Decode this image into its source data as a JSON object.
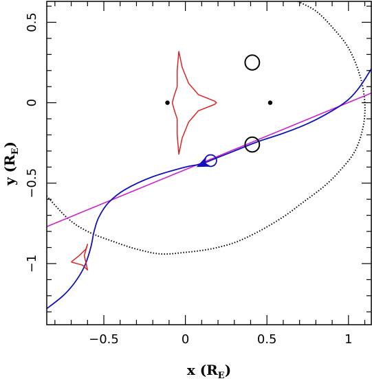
{
  "chart_data": {
    "type": "scatter",
    "title": "",
    "xlabel": {
      "prefix": "x (R",
      "sub": "E",
      "suffix": ")"
    },
    "ylabel": {
      "prefix": "y (R",
      "sub": "E",
      "suffix": ")"
    },
    "xlim": [
      -0.85,
      1.14
    ],
    "ylim": [
      -1.38,
      0.63
    ],
    "xticks": [
      {
        "value": -0.5,
        "label": "−0.5"
      },
      {
        "value": 0,
        "label": "0"
      },
      {
        "value": 0.5,
        "label": "0.5"
      },
      {
        "value": 1,
        "label": "1"
      }
    ],
    "yticks": [
      {
        "value": 0.5,
        "label": "0.5"
      },
      {
        "value": 0,
        "label": "0"
      },
      {
        "value": -0.5,
        "label": "−0.5"
      },
      {
        "value": -1,
        "label": "−1"
      }
    ],
    "x_minor_step": 0.1,
    "y_minor_step": 0.1,
    "colors": {
      "caustic": "#dd2222",
      "trajectory": "#1111bb",
      "straight_line": "#cc22cc",
      "boundary": "#000000",
      "images": "#000000",
      "source": "#1111bb"
    },
    "lens_positions": [
      [
        -0.11,
        0.0
      ],
      [
        0.52,
        0.0
      ]
    ],
    "image_ellipses": [
      {
        "x": 0.41,
        "y": 0.25,
        "rx": 0.044,
        "ry": 0.046
      },
      {
        "x": 0.41,
        "y": -0.26,
        "rx": 0.044,
        "ry": 0.046
      }
    ],
    "source_circle": {
      "x": 0.155,
      "y": -0.36,
      "r": 0.036
    },
    "arrow": {
      "x": 0.11,
      "y": -0.38,
      "direction": [
        -1,
        -0.45
      ]
    },
    "straight_line": [
      [
        -0.85,
        -0.77
      ],
      [
        1.14,
        0.06
      ]
    ],
    "trajectory": [
      [
        -0.85,
        -1.28
      ],
      [
        -0.75,
        -1.2
      ],
      [
        -0.68,
        -1.12
      ],
      [
        -0.62,
        -1.02
      ],
      [
        -0.58,
        -0.9
      ],
      [
        -0.56,
        -0.8
      ],
      [
        -0.53,
        -0.71
      ],
      [
        -0.47,
        -0.62
      ],
      [
        -0.37,
        -0.54
      ],
      [
        -0.2,
        -0.46
      ],
      [
        0.0,
        -0.4
      ],
      [
        0.1,
        -0.38
      ],
      [
        0.2,
        -0.34
      ],
      [
        0.3,
        -0.3
      ],
      [
        0.45,
        -0.24
      ],
      [
        0.6,
        -0.19
      ],
      [
        0.75,
        -0.13
      ],
      [
        0.9,
        -0.05
      ],
      [
        1.0,
        0.02
      ],
      [
        1.07,
        0.1
      ],
      [
        1.14,
        0.21
      ]
    ],
    "central_caustic": [
      [
        -0.04,
        0.32
      ],
      [
        -0.02,
        0.22
      ],
      [
        0.02,
        0.12
      ],
      [
        0.08,
        0.05
      ],
      [
        0.18,
        0.01
      ],
      [
        0.19,
        0.0
      ],
      [
        0.18,
        -0.01
      ],
      [
        0.08,
        -0.05
      ],
      [
        0.02,
        -0.12
      ],
      [
        -0.02,
        -0.22
      ],
      [
        -0.04,
        -0.32
      ],
      [
        -0.05,
        -0.2
      ],
      [
        -0.05,
        -0.1
      ],
      [
        -0.07,
        -0.04
      ],
      [
        -0.08,
        0.0
      ],
      [
        -0.07,
        0.04
      ],
      [
        -0.05,
        0.1
      ],
      [
        -0.05,
        0.2
      ],
      [
        -0.04,
        0.32
      ]
    ],
    "planetary_caustic": [
      [
        -0.7,
        -0.99
      ],
      [
        -0.65,
        -0.95
      ],
      [
        -0.61,
        -0.91
      ],
      [
        -0.6,
        -0.88
      ],
      [
        -0.62,
        -0.95
      ],
      [
        -0.6,
        -1.04
      ],
      [
        -0.63,
        -1.01
      ],
      [
        -0.7,
        -0.99
      ]
    ],
    "boundary_curve": [
      [
        0.69,
        0.63
      ],
      [
        0.8,
        0.57
      ],
      [
        0.9,
        0.47
      ],
      [
        1.0,
        0.34
      ],
      [
        1.07,
        0.17
      ],
      [
        1.1,
        0.0
      ],
      [
        1.09,
        -0.15
      ],
      [
        1.04,
        -0.3
      ],
      [
        0.95,
        -0.42
      ],
      [
        0.85,
        -0.52
      ],
      [
        0.72,
        -0.62
      ],
      [
        0.6,
        -0.71
      ],
      [
        0.45,
        -0.8
      ],
      [
        0.3,
        -0.87
      ],
      [
        0.15,
        -0.91
      ],
      [
        0.0,
        -0.93
      ],
      [
        -0.15,
        -0.94
      ],
      [
        -0.3,
        -0.91
      ],
      [
        -0.45,
        -0.86
      ],
      [
        -0.6,
        -0.8
      ],
      [
        -0.72,
        -0.72
      ],
      [
        -0.85,
        -0.58
      ]
    ]
  }
}
